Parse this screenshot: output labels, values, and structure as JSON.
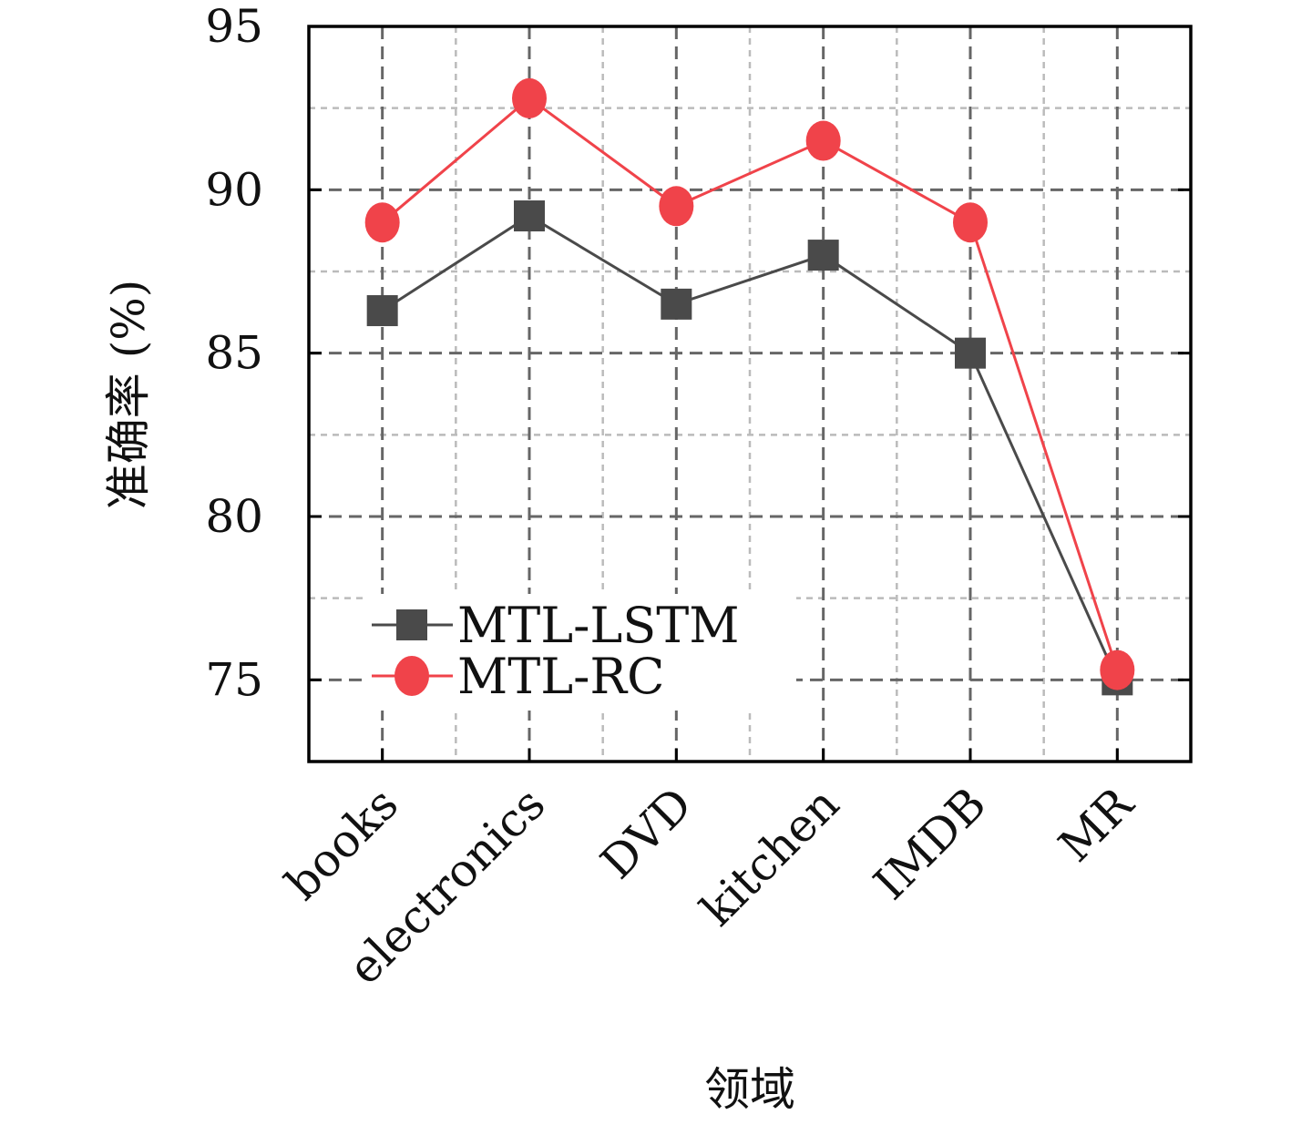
{
  "chart_data": {
    "type": "line",
    "categories": [
      "books",
      "electronics",
      "DVD",
      "kitchen",
      "IMDB",
      "MR"
    ],
    "series": [
      {
        "name": "MTL-LSTM",
        "values": [
          86.3,
          89.2,
          86.5,
          88.0,
          85.0,
          75.0
        ],
        "color": "#4a4a4a",
        "marker": "square"
      },
      {
        "name": "MTL-RC",
        "values": [
          89.0,
          92.8,
          89.5,
          91.5,
          89.0,
          75.3
        ],
        "color": "#f0434a",
        "marker": "circle"
      }
    ],
    "xlabel": "领域",
    "ylabel": "准确率 (%)",
    "ylim": [
      72.5,
      95
    ],
    "yticks": [
      75,
      80,
      85,
      90,
      95
    ],
    "grid": true,
    "legend": "lower-left"
  }
}
